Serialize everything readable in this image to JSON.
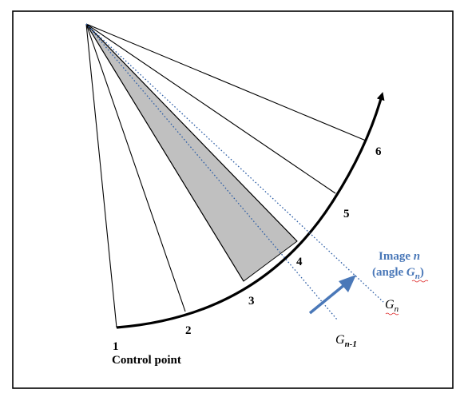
{
  "diagram": {
    "point_numbers": [
      "1",
      "2",
      "3",
      "4",
      "5",
      "6"
    ],
    "control_point_label": "Control point",
    "image_label_line1": "Image ",
    "image_label_var": "n",
    "image_label_line2_open": "(angle ",
    "image_label_angle_base": "G",
    "image_label_angle_sub": "n",
    "image_label_line2_close": ")",
    "g_n_base": "G",
    "g_n_sub": "n",
    "g_n1_base": "G",
    "g_n1_sub": "n-1"
  },
  "colors": {
    "accent_blue": "#4a78b8",
    "shade_gray": "#c0c0c0"
  }
}
